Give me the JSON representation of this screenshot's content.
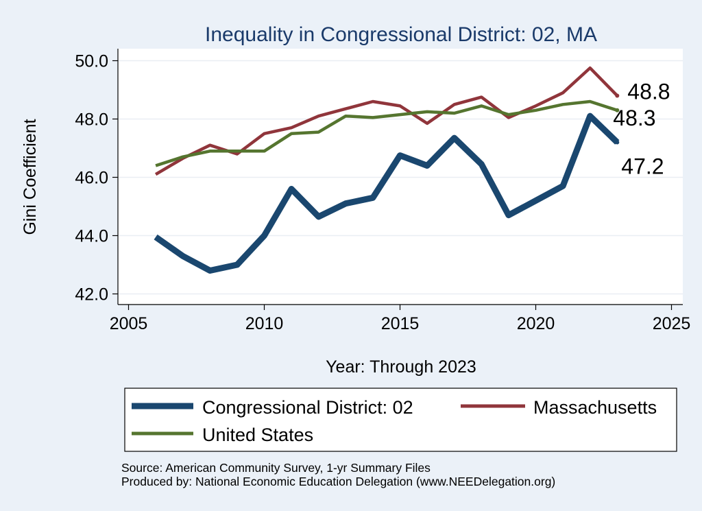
{
  "chart_data": {
    "type": "line",
    "title": "Inequality in Congressional District:  02, MA",
    "xlabel": "Year: Through 2023",
    "ylabel": "Gini Coefficient",
    "xlim": [
      2005,
      2025
    ],
    "ylim": [
      41.6,
      50.4
    ],
    "xticks": [
      2005,
      2010,
      2015,
      2020,
      2025
    ],
    "yticks": [
      42.0,
      44.0,
      46.0,
      48.0,
      50.0
    ],
    "xtick_labels": [
      "2005",
      "2010",
      "2015",
      "2020",
      "2025"
    ],
    "ytick_labels": [
      "42.0",
      "44.0",
      "46.0",
      "48.0",
      "50.0"
    ],
    "grid": true,
    "x": [
      2006,
      2007,
      2008,
      2009,
      2010,
      2011,
      2012,
      2013,
      2014,
      2015,
      2016,
      2017,
      2018,
      2019,
      2020,
      2021,
      2022,
      2023
    ],
    "series": [
      {
        "name": "Congressional District:  02",
        "color": "#1a476f",
        "values": [
          43.95,
          43.3,
          42.8,
          43.0,
          44.0,
          45.6,
          44.65,
          45.1,
          45.3,
          46.75,
          46.4,
          47.35,
          46.45,
          44.7,
          45.2,
          45.7,
          48.1,
          47.2
        ],
        "end_label": "47.2"
      },
      {
        "name": "Massachusetts",
        "color": "#90353b",
        "values": [
          46.1,
          46.65,
          47.1,
          46.8,
          47.5,
          47.7,
          48.1,
          48.35,
          48.6,
          48.45,
          47.85,
          48.5,
          48.75,
          48.05,
          48.45,
          48.9,
          49.75,
          48.8
        ],
        "end_label": "48.8"
      },
      {
        "name": "United States",
        "color": "#55752f",
        "values": [
          46.4,
          46.7,
          46.9,
          46.9,
          46.9,
          47.5,
          47.55,
          48.1,
          48.05,
          48.15,
          48.25,
          48.2,
          48.45,
          48.15,
          48.3,
          48.5,
          48.6,
          48.3
        ],
        "end_label": "48.3"
      }
    ],
    "legend": {
      "placement": "bottom",
      "entries": [
        "Congressional District:  02",
        "Massachusetts",
        "United States"
      ]
    },
    "notes": [
      "Source: American Community Survey, 1-yr Summary Files",
      "Produced by: National Economic Education Delegation (www.NEEDelegation.org)"
    ]
  }
}
